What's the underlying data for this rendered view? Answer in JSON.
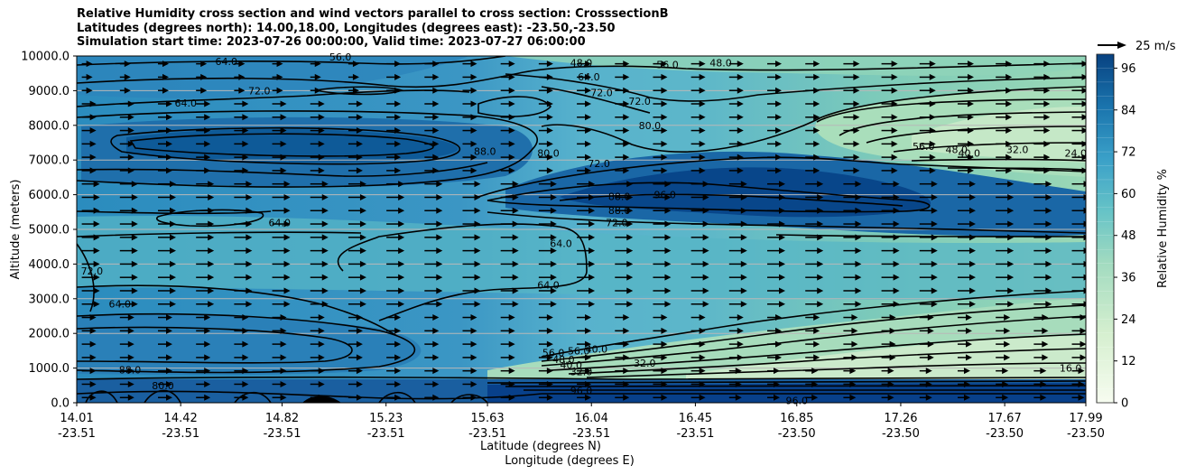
{
  "chart_data": {
    "type": "heatmap",
    "title": [
      "Relative Humidity cross section and wind vectors parallel to cross section: CrosssectionB",
      "Latitudes (degrees north): 14.00,18.00, Longitudes (degrees east): -23.50,-23.50",
      "Simulation start time: 2023-07-26 00:00:00, Valid time: 2023-07-27 06:00:00"
    ],
    "ylabel": "Altitude (meters)",
    "xlabel": "Latitude (degrees N)",
    "xlabel2": "Longitude (degrees E)",
    "ylim": [
      0,
      10000
    ],
    "yticks": [
      "0.0",
      "1000.0",
      "2000.0",
      "3000.0",
      "4000.0",
      "5000.0",
      "6000.0",
      "7000.0",
      "8000.0",
      "9000.0",
      "10000.0"
    ],
    "ytick_values": [
      0,
      1000,
      2000,
      3000,
      4000,
      5000,
      6000,
      7000,
      8000,
      9000,
      10000
    ],
    "xlim": [
      14.01,
      17.99
    ],
    "xtick_values": [
      14.01,
      14.42,
      14.82,
      15.23,
      15.63,
      16.04,
      16.45,
      16.85,
      17.26,
      17.67,
      17.99
    ],
    "xticks_lat": [
      "14.01",
      "14.42",
      "14.82",
      "15.23",
      "15.63",
      "16.04",
      "16.45",
      "16.85",
      "17.26",
      "17.67",
      "17.99"
    ],
    "xticks_lon": [
      "-23.51",
      "-23.51",
      "-23.51",
      "-23.51",
      "-23.51",
      "-23.51",
      "-23.51",
      "-23.50",
      "-23.50",
      "-23.50",
      "-23.50"
    ],
    "colorbar": {
      "label": "Relative Humidity %",
      "range": [
        0,
        100
      ],
      "ticks": [
        "0",
        "12",
        "24",
        "36",
        "48",
        "60",
        "72",
        "84",
        "96"
      ],
      "tick_values": [
        0,
        12,
        24,
        36,
        48,
        60,
        72,
        84,
        96
      ]
    },
    "quiver_key": {
      "label": "25 m/s",
      "value": 25
    },
    "contour_labels": [
      {
        "text": "64.0",
        "x": 14.6,
        "y": 9850
      },
      {
        "text": "56.0",
        "x": 15.05,
        "y": 9980
      },
      {
        "text": "48.0",
        "x": 16.0,
        "y": 9800
      },
      {
        "text": "56.0",
        "x": 16.34,
        "y": 9750
      },
      {
        "text": "48.0",
        "x": 16.55,
        "y": 9800
      },
      {
        "text": "64.0",
        "x": 16.03,
        "y": 9400
      },
      {
        "text": "72.0",
        "x": 16.08,
        "y": 8950
      },
      {
        "text": "72.0",
        "x": 16.23,
        "y": 8700
      },
      {
        "text": "80.0",
        "x": 16.27,
        "y": 8000
      },
      {
        "text": "72.0",
        "x": 14.73,
        "y": 9000
      },
      {
        "text": "64.0",
        "x": 14.44,
        "y": 8650
      },
      {
        "text": "88.0",
        "x": 15.62,
        "y": 7250
      },
      {
        "text": "80.0",
        "x": 15.87,
        "y": 7200
      },
      {
        "text": "72.0",
        "x": 16.07,
        "y": 6900
      },
      {
        "text": "56.0",
        "x": 17.35,
        "y": 7400
      },
      {
        "text": "48.0",
        "x": 17.48,
        "y": 7300
      },
      {
        "text": "40.0",
        "x": 17.53,
        "y": 7200
      },
      {
        "text": "32.0",
        "x": 17.72,
        "y": 7300
      },
      {
        "text": "24.0",
        "x": 17.95,
        "y": 7200
      },
      {
        "text": "88.0",
        "x": 16.15,
        "y": 5950
      },
      {
        "text": "88.0",
        "x": 16.15,
        "y": 5550
      },
      {
        "text": "96.0",
        "x": 16.33,
        "y": 6000
      },
      {
        "text": "72.0",
        "x": 16.14,
        "y": 5200
      },
      {
        "text": "64.0",
        "x": 14.81,
        "y": 5200
      },
      {
        "text": "64.0",
        "x": 15.92,
        "y": 4600
      },
      {
        "text": "64.0",
        "x": 15.87,
        "y": 3400
      },
      {
        "text": "72.0",
        "x": 14.07,
        "y": 3800
      },
      {
        "text": "64.0",
        "x": 14.18,
        "y": 2850
      },
      {
        "text": "56.0",
        "x": 15.89,
        "y": 1450
      },
      {
        "text": "56.0",
        "x": 15.99,
        "y": 1500
      },
      {
        "text": "40.0",
        "x": 16.06,
        "y": 1550
      },
      {
        "text": "48.0",
        "x": 15.93,
        "y": 1250
      },
      {
        "text": "40.0",
        "x": 15.96,
        "y": 1100
      },
      {
        "text": "32.0",
        "x": 16.25,
        "y": 1150
      },
      {
        "text": "32.0",
        "x": 16.0,
        "y": 900
      },
      {
        "text": "88.0",
        "x": 14.22,
        "y": 950
      },
      {
        "text": "80.0",
        "x": 14.35,
        "y": 500
      },
      {
        "text": "96.0",
        "x": 16.0,
        "y": 350
      },
      {
        "text": "96.0",
        "x": 16.85,
        "y": 60
      },
      {
        "text": "16.0",
        "x": 17.93,
        "y": 1000
      }
    ]
  }
}
